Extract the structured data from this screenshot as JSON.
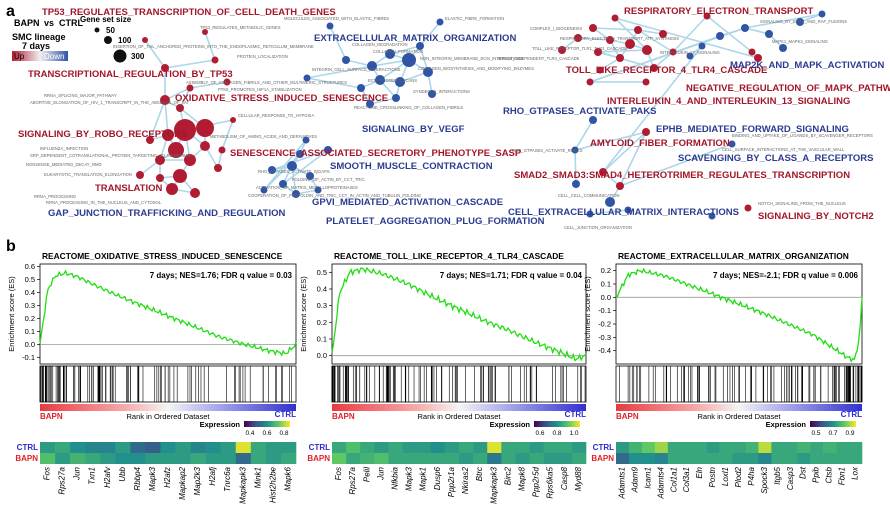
{
  "panel_a": {
    "panel_label": "a",
    "legend": {
      "condition_left": "BAPN",
      "vs": "vs",
      "condition_right": "CTRL",
      "lineage": "SMC lineage",
      "timepoint": "7 days",
      "up_label": "Up",
      "down_label": "Down",
      "gene_set_size_title": "Gene set size",
      "sizes": [
        "50",
        "100",
        "300"
      ],
      "colors": {
        "up": "#b11c32",
        "down": "#2f55a4"
      }
    },
    "labels_up": [
      "TP53_REGULATES_TRANSCRIPTION_OF_CELL_DEATH_GENES",
      "TRANSCRIPTIONAL_REGULATION_BY_TP53",
      "OXIDATIVE_STRESS_INDUCED_SENESCENCE",
      "SIGNALING_BY_ROBO_RECEPTORS",
      "SENESCENCE_ASSOCIATED_SECRETORY_PHENOTYPE_SASP",
      "TRANSLATION",
      "RESPIRATORY_ELECTRON_TRANSPORT",
      "TOLL_LIKE_RECEPTOR_4_TLR4_CASCADE",
      "NEGATIVE_REGULATION_OF_MAPK_PATHWAY",
      "INTERLEUKIN_4_AND_INTERLEUKIN_13_SIGNALING",
      "AMYLOID_FIBER_FORMATION",
      "SMAD2_SMAD3:SMAD4_HETEROTRIMER_REGULATES_TRANSCRIPTION",
      "SIGNALING_BY_NOTCH2"
    ],
    "labels_down": [
      "EXTRACELLULAR_MATRIX_ORGANIZATION",
      "SIGNALING_BY_VEGF",
      "SMOOTH_MUSCLE_CONTRACTION",
      "GAP_JUNCTION_TRAFFICKING_AND_REGULATION",
      "GPVI_MEDIATED_ACTIVATION_CASCADE",
      "PLATELET_AGGREGATION_PLUG_FORMATION",
      "MAP2K_AND_MAPK_ACTIVATION",
      "RHO_GTPASES_ACTIVATE_PAKS",
      "EPHB_MEDIATED_FORWARD_SIGNALING",
      "SCAVENGING_BY_CLASS_A_RECEPTORS",
      "CELL_EXTRACELLULAR_MATRIX_INTERACTIONS"
    ],
    "labels_small": [
      "TP53_REGULATES_METABOLIC_GENES",
      "INSERTION_OF_TAIL_ANCHORED_PROTEINS_INTO_THE_ENDOPLASMIC_RETICULUM_MEMBRANE",
      "PROTEIN_LOCALIZATION",
      "MOLECULES_ASSOCIATED_WITH_ELASTIC_FIBRES",
      "ELASTIC_FIBRE_FORMATION",
      "COLLAGEN_DEGRADATION",
      "COLLAGEN_FORMATION",
      "NON_INTEGRIN_MEMBRANE_ECM_INTERACTIONS",
      "COLLAGEN_BIOSYNTHESIS_AND_MODIFYING_ENZYMES",
      "INTEGRIN_CELL_SURFACE_INTERACTIONS",
      "ECM_PROTEOGLYCANS",
      "SYNDECAN_INTERACTIONS",
      "REACTOME_CROSSLINKING_OF_COLLAGEN_FIBRILS",
      "ASSEMBLY_OF_COLLAGEN_FIBRILS_AND_OTHER_MULTIMERIC_STRUCTURES",
      "PTK6_PROMOTES_HIF1A_STABILIZATION",
      "RRNA_SPLICING_MAJOR_PATHWAY",
      "ABORTIVE_ELONGATION_OF_HIV_1_TRANSCRIPT_IN_THE_ABSENCE_OF_TAT",
      "METABOLISM_OF_AMINO_ACIDS_AND_DERIVATIVES",
      "INFLUENZA_INFECTION",
      "SRP_DEPENDENT_COTRANSLATIONAL_PROTEIN_TARGETING_TO_MEMBRANE",
      "NONSENSE_MEDIATED_DECAY_NMD",
      "EUKARYOTIC_TRANSLATION_ELONGATION",
      "RRNA_PROCESSING",
      "RRNA_PROCESSING_IN_THE_NUCLEUS_AND_CYTOSOL",
      "CELLULAR_RESPONSE_TO_HYPOXIA",
      "RHO_GTPASES_ACTIVATE_IQGAPS",
      "ACTIVATION_OF_MATRIX_METALLOPROTEINASES",
      "COOPERATION_OF_PREFOLDIN_AND_TRIC_CCT_IN_ACTIN_AND_TUBULIN_FOLDING",
      "FOLDING_OF_ACTIN_BY_CCT_TRIC",
      "CELL_CELL_COMMUNICATION",
      "CELL_JUNCTION_ORGANIZATION",
      "COMPLEX_I_BIOGENESIS",
      "RESPIRATORY_ELECTRON_TRANSPORT_ATP_SYNTHESIS",
      "TOLL_LIKE_RECEPTOR_TLR1_TLR2_CASCADE",
      "MYD88_INDEPENDENT_TLR4_CASCADE",
      "INTERLEUKIN_17_SIGNALING",
      "SIGNALING_BY_BRAF_AND_RAF_FUSIONS",
      "MAPK1_MAPK3_SIGNALING",
      "RHO_GTPASES_ACTIVATE_ROCKS",
      "CELL_SURFACE_INTERACTIONS_AT_THE_VASCULAR_WALL",
      "BINDING_AND_UPTAKE_OF_LIGANDS_BY_SCAVENGER_RECEPTORS",
      "NOTCH_SIGNALING_FROM_THE_NUCLEUS"
    ]
  },
  "panel_b": {
    "panel_label": "b",
    "y_axis_label": "Enrichment score (ES)",
    "x_axis_label": "Rank in Ordered Dataset",
    "left_group": "BAPN",
    "right_group": "CTRL",
    "expression_label": "Expression",
    "heat_row_labels": [
      "CTRL",
      "BAPN"
    ]
  },
  "chart_data": [
    {
      "type": "line",
      "title": "REACTOME_OXIDATIVE_STRESS_INDUCED_SENESCENCE",
      "stats": "7 days; NES=1.76; FDR q value = 0.03",
      "ylabel": "Enrichment score (ES)",
      "xlabel": "Rank in Ordered Dataset",
      "ylim": [
        -0.15,
        0.62
      ],
      "yticks": [
        "0.6",
        "0.5",
        "0.4",
        "0.3",
        "0.2",
        "0.1",
        "0.0",
        "-0.1"
      ],
      "x": [
        0,
        0.03,
        0.06,
        0.1,
        0.15,
        0.2,
        0.3,
        0.4,
        0.5,
        0.6,
        0.7,
        0.8,
        0.9,
        0.96,
        1.0
      ],
      "y": [
        0,
        0.42,
        0.53,
        0.55,
        0.52,
        0.47,
        0.38,
        0.3,
        0.22,
        0.14,
        0.06,
        0.0,
        -0.05,
        -0.07,
        0.0
      ],
      "line_color": "#22dd11",
      "expression_ticks": [
        "0.4",
        "0.6",
        "0.8"
      ],
      "genes": [
        "Fos",
        "Rps27a",
        "Jun",
        "Txn1",
        "H2afv",
        "Ubb",
        "Rbbp4",
        "Mapk3",
        "H2afz",
        "Mapkap2",
        "Map2k3",
        "H2afj",
        "Tnrc6a",
        "Mapkapk3",
        "Mink1",
        "Hist2h2be",
        "Mapk6"
      ],
      "ctrl_expr": [
        0.55,
        0.6,
        0.5,
        0.45,
        0.45,
        0.55,
        0.35,
        0.3,
        0.5,
        0.55,
        0.45,
        0.5,
        0.55,
        0.95,
        0.6,
        0.55,
        0.55
      ],
      "bapn_expr": [
        0.7,
        0.55,
        0.65,
        0.6,
        0.55,
        0.5,
        0.5,
        0.55,
        0.55,
        0.55,
        0.6,
        0.55,
        0.55,
        0.35,
        0.6,
        0.55,
        0.6
      ]
    },
    {
      "type": "line",
      "title": "REACTOME_TOLL_LIKE_RECEPTOR_4_TLR4_CASCADE",
      "stats": "7 days; NES=1.71; FDR q value = 0.04",
      "ylabel": "Enrichment score (ES)",
      "xlabel": "Rank in Ordered Dataset",
      "ylim": [
        -0.05,
        0.55
      ],
      "yticks": [
        "0.5",
        "0.4",
        "0.3",
        "0.2",
        "0.1",
        "0.0"
      ],
      "x": [
        0,
        0.03,
        0.07,
        0.12,
        0.2,
        0.3,
        0.4,
        0.5,
        0.6,
        0.7,
        0.8,
        0.9,
        0.96,
        1.0
      ],
      "y": [
        0,
        0.38,
        0.5,
        0.52,
        0.49,
        0.43,
        0.35,
        0.28,
        0.21,
        0.15,
        0.08,
        0.02,
        -0.02,
        0.0
      ],
      "line_color": "#22dd11",
      "expression_ticks": [
        "0.6",
        "0.8",
        "1.0"
      ],
      "genes": [
        "Fos",
        "Rps27a",
        "Pelil",
        "Jun",
        "Nfkbia",
        "Mapk3",
        "Mapk1",
        "Dusp6",
        "Ppp2r1a",
        "Nkiras2",
        "Btrc",
        "Mapkapk3",
        "Birc2",
        "Mapk8",
        "Ppp2r5d",
        "Rps6ka5",
        "Casp8",
        "Myd88"
      ],
      "ctrl_expr": [
        0.6,
        0.7,
        0.6,
        0.55,
        0.6,
        0.55,
        0.55,
        0.5,
        0.55,
        0.6,
        0.55,
        0.95,
        0.6,
        0.6,
        0.55,
        0.6,
        0.6,
        0.55
      ],
      "bapn_expr": [
        0.75,
        0.6,
        0.65,
        0.7,
        0.6,
        0.6,
        0.6,
        0.6,
        0.6,
        0.55,
        0.6,
        0.4,
        0.6,
        0.55,
        0.6,
        0.55,
        0.55,
        0.6
      ]
    },
    {
      "type": "line",
      "title": "REACTOME_EXTRACELLULAR_MATRIX_ORGANIZATION",
      "stats": "7 days; NES=-2.1; FDR q value = 0.006",
      "ylabel": "Enrichment score (ES)",
      "xlabel": "Rank in Ordered Dataset",
      "ylim": [
        -0.5,
        0.25
      ],
      "yticks": [
        "0.2",
        "0.1",
        "0.0",
        "-0.1",
        "-0.2",
        "-0.3",
        "-0.4"
      ],
      "x": [
        0,
        0.05,
        0.1,
        0.2,
        0.3,
        0.4,
        0.5,
        0.6,
        0.7,
        0.8,
        0.85,
        0.9,
        0.94,
        0.97,
        0.99,
        1.0
      ],
      "y": [
        0,
        0.17,
        0.2,
        0.16,
        0.09,
        0.02,
        -0.05,
        -0.12,
        -0.2,
        -0.28,
        -0.34,
        -0.4,
        -0.45,
        -0.47,
        -0.3,
        0.0
      ],
      "line_color": "#22dd11",
      "expression_ticks": [
        "0.5",
        "0.7",
        "0.9"
      ],
      "genes": [
        "Adamts1",
        "Adam9",
        "Icam1",
        "Adamts4",
        "Col1a1",
        "Col3a1",
        "Eln",
        "Postn",
        "Loxl1",
        "Plod2",
        "P4ha",
        "Spock3",
        "Itgb5",
        "Casp3",
        "Dst",
        "Ppib",
        "Ctsb",
        "Fbn1",
        "Lox"
      ],
      "ctrl_expr": [
        0.55,
        0.65,
        0.75,
        0.85,
        0.6,
        0.6,
        0.6,
        0.55,
        0.6,
        0.6,
        0.65,
        0.9,
        0.6,
        0.6,
        0.65,
        0.6,
        0.65,
        0.6,
        0.6
      ],
      "bapn_expr": [
        0.35,
        0.5,
        0.5,
        0.45,
        0.6,
        0.6,
        0.6,
        0.6,
        0.6,
        0.55,
        0.55,
        0.45,
        0.6,
        0.6,
        0.55,
        0.6,
        0.6,
        0.6,
        0.6
      ]
    }
  ]
}
